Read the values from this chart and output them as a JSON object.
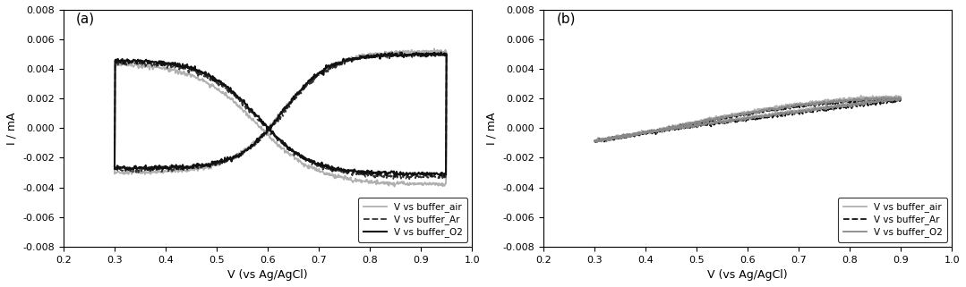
{
  "xlim": [
    0.2,
    1.0
  ],
  "ylim": [
    -0.008,
    0.008
  ],
  "xlabel": "V (vs Ag/AgCl)",
  "ylabel": "I / mA",
  "legend_labels": [
    "V vs buffer_air",
    "V vs buffer_Ar",
    "V vs buffer_O2"
  ],
  "panel_a_label": "(a)",
  "panel_b_label": "(b)",
  "color_air_a": "#b0b0b0",
  "color_ar_a": "#333333",
  "color_o2_a": "#111111",
  "color_air_b": "#b0b0b0",
  "color_ar_b": "#111111",
  "color_o2_b": "#888888",
  "yticks": [
    -0.008,
    -0.006,
    -0.004,
    -0.002,
    0.0,
    0.002,
    0.004,
    0.006,
    0.008
  ],
  "xticks": [
    0.2,
    0.3,
    0.4,
    0.5,
    0.6,
    0.7,
    0.8,
    0.9,
    1.0
  ]
}
